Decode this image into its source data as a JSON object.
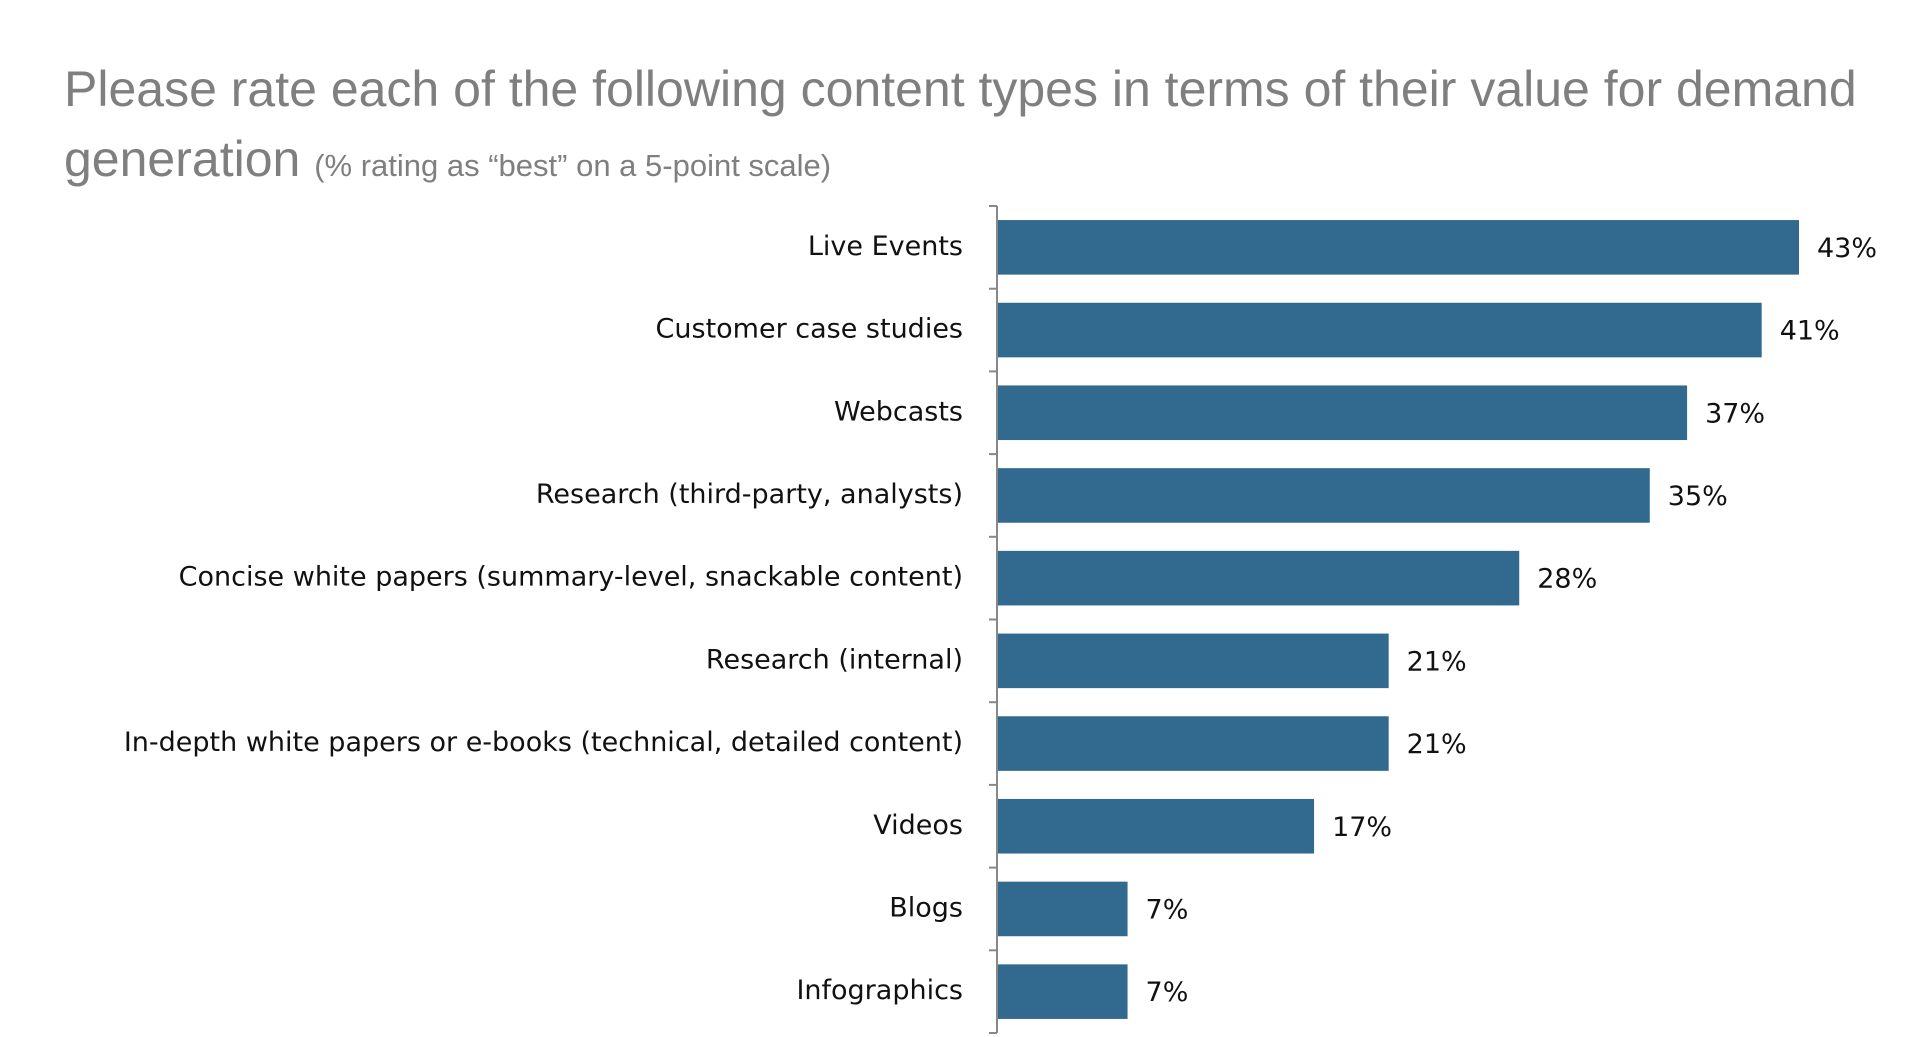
{
  "chart_data": {
    "type": "bar",
    "orientation": "horizontal",
    "title": "Please rate each of the following content types in terms of their value for demand generation",
    "subtitle": "(% rating as “best” on a 5-point scale)",
    "categories": [
      "Live Events",
      "Customer case studies",
      "Webcasts",
      "Research (third-party, analysts)",
      "Concise white papers (summary-level, snackable content)",
      "Research (internal)",
      "In-depth white papers or e-books (technical, detailed content)",
      "Videos",
      "Blogs",
      "Infographics"
    ],
    "values": [
      43,
      41,
      37,
      35,
      28,
      21,
      21,
      17,
      7,
      7
    ],
    "value_labels": [
      "43%",
      "41%",
      "37%",
      "35%",
      "28%",
      "21%",
      "21%",
      "17%",
      "7%",
      "7%"
    ],
    "color": "#326a8f"
  }
}
